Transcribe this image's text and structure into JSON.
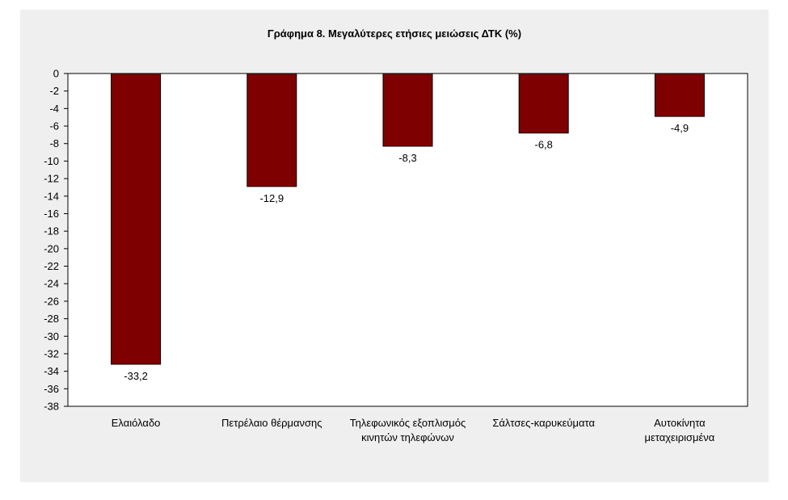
{
  "chart_data": {
    "type": "bar",
    "title": "Γράφημα 8. Μεγαλύτερες ετήσιες μειώσεις ΔΤΚ (%)",
    "xlabel": "",
    "ylabel": "",
    "categories": [
      [
        "Ελαιόλαδο"
      ],
      [
        "Πετρέλαιο θέρμανσης"
      ],
      [
        "Τηλεφωνικός εξοπλισμός",
        "κινητών τηλεφώνων"
      ],
      [
        "Σάλτσες-καρυκεύματα"
      ],
      [
        "Αυτοκίνητα",
        "μεταχειρισμένα"
      ]
    ],
    "values": [
      -33.2,
      -12.9,
      -8.3,
      -6.8,
      -4.9
    ],
    "value_labels": [
      "-33,2",
      "-12,9",
      "-8,3",
      "-6,8",
      "-4,9"
    ],
    "ylim": [
      -38,
      0
    ],
    "y_ticks": [
      0,
      -2,
      -4,
      -6,
      -8,
      -10,
      -12,
      -14,
      -16,
      -18,
      -20,
      -22,
      -24,
      -26,
      -28,
      -30,
      -32,
      -34,
      -36,
      -38
    ],
    "grid": false,
    "legend": "none",
    "colors": {
      "bar": "#7f0000",
      "plot_bg": "#ffffff",
      "panel_bg": "#efefef"
    }
  }
}
